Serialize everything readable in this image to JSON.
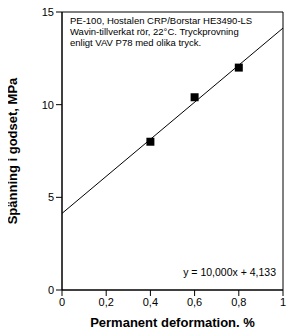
{
  "chart_data": {
    "type": "scatter",
    "title": [
      "PE-100, Hostalen CRP/Borstar HE3490-LS",
      "Wavin-tillverkat rör, 22°C. Tryckprovning",
      "enligt VAV P78 med olika tryck."
    ],
    "x_label": "Permanent deformation, %",
    "y_label": "Spänning i godset, MPa",
    "annotations": [
      "y = 10,000x + 4,133"
    ],
    "xlim": [
      0,
      1
    ],
    "xticks": [
      0,
      {
        "value": 0.2,
        "label": "0,2"
      },
      {
        "value": 0.4,
        "label": "0,4"
      },
      {
        "value": 0.6,
        "label": "0,6"
      },
      {
        "value": 0.8,
        "label": "0,8"
      },
      1
    ],
    "ylim": [
      0,
      15
    ],
    "yticks": [
      0,
      5,
      10,
      15
    ],
    "grid": false,
    "series": [
      {
        "type": "scatter",
        "marker": "square",
        "color": "#000000",
        "x": [
          0.4,
          0.6,
          0.8
        ],
        "values": [
          8.0,
          10.4,
          12.0
        ]
      },
      {
        "type": "line",
        "line_style": "solid",
        "color": "#000000",
        "x": [
          0,
          1
        ],
        "values": [
          4.133,
          14.133
        ]
      }
    ]
  }
}
